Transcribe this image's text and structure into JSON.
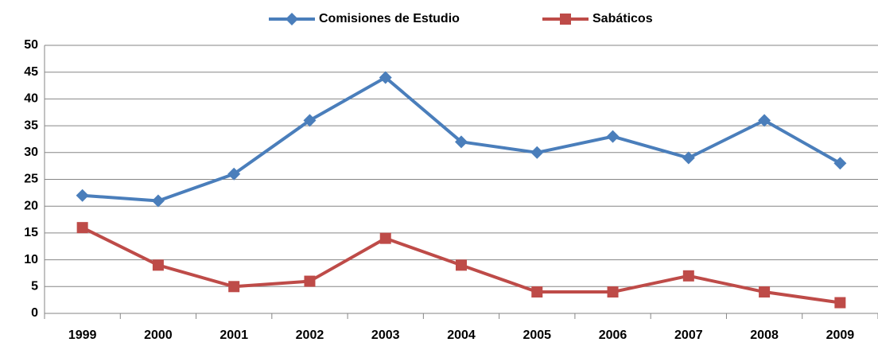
{
  "chart_data": {
    "type": "line",
    "categories": [
      "1999",
      "2000",
      "2001",
      "2002",
      "2003",
      "2004",
      "2005",
      "2006",
      "2007",
      "2008",
      "2009"
    ],
    "series": [
      {
        "name": "Comisiones de Estudio",
        "color": "#4a7ebb",
        "marker": "diamond",
        "values": [
          22,
          21,
          26,
          36,
          44,
          32,
          30,
          33,
          29,
          36,
          28
        ]
      },
      {
        "name": "Sabáticos",
        "color": "#be4b48",
        "marker": "square",
        "values": [
          16,
          9,
          5,
          6,
          14,
          9,
          4,
          4,
          7,
          4,
          2
        ]
      }
    ],
    "ylim": [
      0,
      50
    ],
    "yticks": [
      0,
      5,
      10,
      15,
      20,
      25,
      30,
      35,
      40,
      45,
      50
    ],
    "grid": true,
    "legend": "top"
  }
}
